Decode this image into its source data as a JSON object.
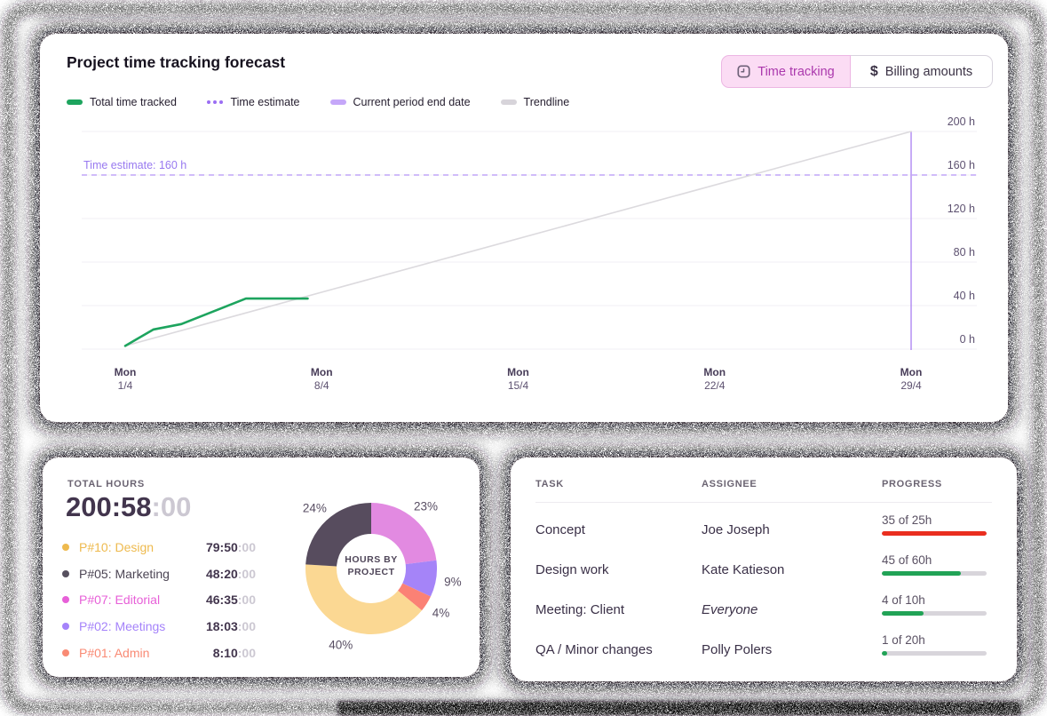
{
  "forecast_card": {
    "title": "Project time tracking forecast",
    "toggle": {
      "time_tracking": "Time tracking",
      "billing_amounts": "Billing amounts"
    },
    "legend": [
      {
        "label": "Total time tracked",
        "marker": "pill",
        "color": "#1da45e"
      },
      {
        "label": "Time estimate",
        "marker": "dots",
        "color": "#9b6ef3"
      },
      {
        "label": "Current period end date",
        "marker": "pill",
        "color": "#c5a7f9"
      },
      {
        "label": "Trendline",
        "marker": "pill",
        "color": "#d7d4da"
      }
    ],
    "chart_data": {
      "type": "line",
      "xlabel": "",
      "ylabel": "hours",
      "ylim": [
        0,
        200
      ],
      "x_range_days": [
        0,
        28
      ],
      "grid": true,
      "y_ticks": [
        {
          "label": "0 h",
          "value": 0
        },
        {
          "label": "40 h",
          "value": 40
        },
        {
          "label": "80 h",
          "value": 80
        },
        {
          "label": "120 h",
          "value": 120
        },
        {
          "label": "160 h",
          "value": 160
        },
        {
          "label": "200 h",
          "value": 200
        }
      ],
      "x_ticks": [
        {
          "weekday": "Mon",
          "date": "1/4",
          "day": 0
        },
        {
          "weekday": "Mon",
          "date": "8/4",
          "day": 7
        },
        {
          "weekday": "Mon",
          "date": "15/4",
          "day": 14
        },
        {
          "weekday": "Mon",
          "date": "22/4",
          "day": 21
        },
        {
          "weekday": "Mon",
          "date": "29/4",
          "day": 28
        }
      ],
      "series": [
        {
          "name": "Total time tracked",
          "color": "#1da45e",
          "width": 2.6,
          "points": [
            [
              0,
              3
            ],
            [
              1,
              18
            ],
            [
              2,
              23
            ],
            [
              4.3,
              46.5
            ],
            [
              6.5,
              46.5
            ]
          ]
        },
        {
          "name": "Trendline",
          "color": "#dcdade",
          "width": 1.6,
          "points": [
            [
              0,
              3
            ],
            [
              28,
              200
            ]
          ]
        }
      ],
      "estimate_line": {
        "value": 160,
        "label": "Time estimate: 160 h",
        "color": "#b494f6"
      },
      "period_end_line": {
        "day": 28,
        "color": "#a97ef2"
      }
    }
  },
  "total_hours_card": {
    "label": "TOTAL HOURS",
    "value_main": "200:58",
    "value_seconds": ":00",
    "projects": [
      {
        "name": "P#10: Design",
        "color": "#eeba4e",
        "time": "79:50",
        "seconds": ":00"
      },
      {
        "name": "P#05: Marketing",
        "color": "#57505f",
        "text_color": "#4c4554",
        "time": "48:20",
        "seconds": ":00"
      },
      {
        "name": "P#07: Editorial",
        "color": "#e760d8",
        "time": "46:35",
        "seconds": ":00"
      },
      {
        "name": "P#02: Meetings",
        "color": "#a583fa",
        "time": "18:03",
        "seconds": ":00"
      },
      {
        "name": "P#01: Admin",
        "color": "#f98a74",
        "time": "8:10",
        "seconds": ":00"
      }
    ],
    "chart_data": {
      "type": "pie",
      "title": "HOURS BY PROJECT",
      "slices": [
        {
          "label": "23%",
          "value": 23,
          "color": "#e28ae1",
          "project": "P#07: Editorial"
        },
        {
          "label": "9%",
          "value": 9,
          "color": "#a584f8",
          "project": "P#02: Meetings"
        },
        {
          "label": "4%",
          "value": 4,
          "color": "#fb8175",
          "project": "P#01: Admin"
        },
        {
          "label": "40%",
          "value": 40,
          "color": "#fbd893",
          "project": "P#10: Design"
        },
        {
          "label": "24%",
          "value": 24,
          "color": "#574c5e",
          "project": "P#05: Marketing"
        }
      ]
    }
  },
  "tasks_card": {
    "headers": [
      "TASK",
      "ASSIGNEE",
      "PROGRESS"
    ],
    "rows": [
      {
        "task": "Concept",
        "assignee": "Joe Joseph",
        "assignee_italic": false,
        "progress_label": "35 of 25h",
        "done": 35,
        "total": 25,
        "bar_color": "#ea2e1f"
      },
      {
        "task": "Design work",
        "assignee": "Kate Katieson",
        "assignee_italic": false,
        "progress_label": "45 of 60h",
        "done": 45,
        "total": 60,
        "bar_color": "#21a356"
      },
      {
        "task": "Meeting: Client",
        "assignee": "Everyone",
        "assignee_italic": true,
        "progress_label": "4 of 10h",
        "done": 4,
        "total": 10,
        "bar_color": "#21a356"
      },
      {
        "task": "QA / Minor changes",
        "assignee": "Polly Polers",
        "assignee_italic": false,
        "progress_label": "1 of 20h",
        "done": 1,
        "total": 20,
        "bar_color": "#21a356"
      }
    ]
  }
}
